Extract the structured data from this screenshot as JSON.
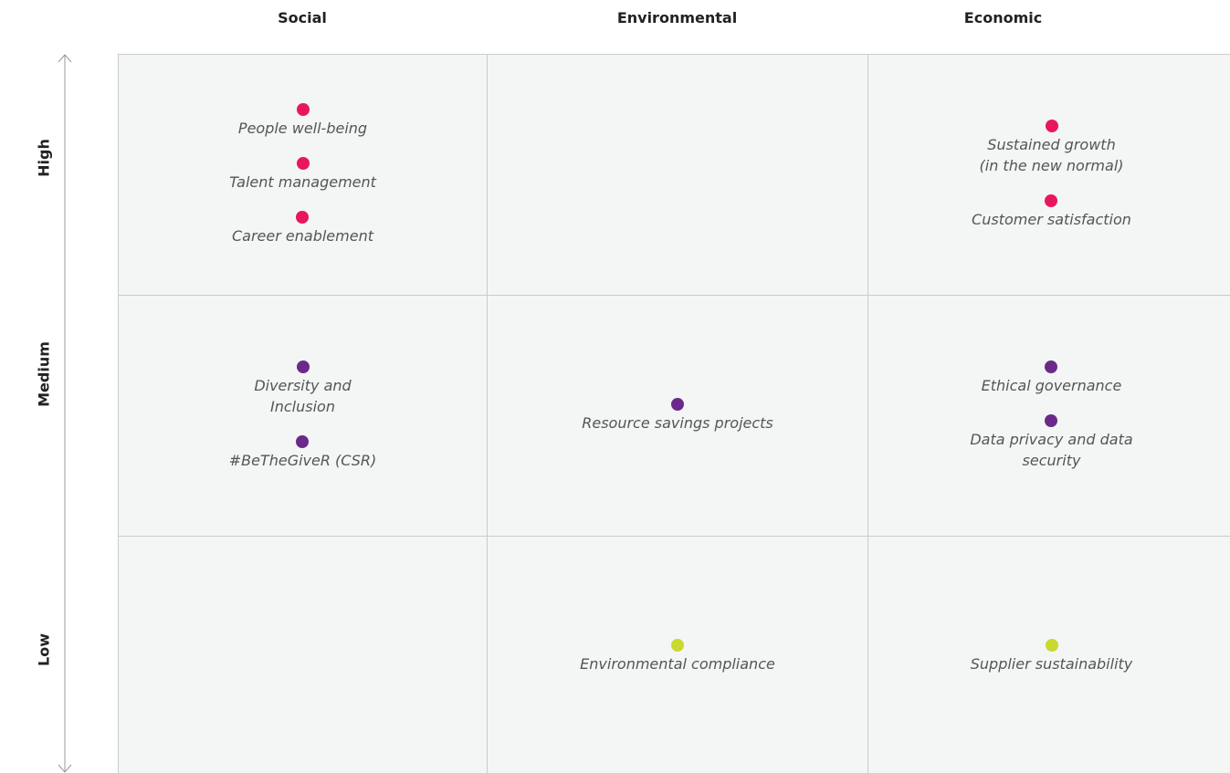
{
  "columns": [
    "Social",
    "Environmental",
    "Economic"
  ],
  "rows": [
    {
      "label": "High",
      "cells": [
        [
          {
            "lines": [
              "People well-being"
            ],
            "color": "#e8175d"
          },
          {
            "lines": [
              "Talent management"
            ],
            "color": "#e8175d"
          },
          {
            "lines": [
              "Career enablement"
            ],
            "color": "#e8175d"
          }
        ],
        [],
        [
          {
            "lines": [
              "Sustained growth",
              "(in the new normal)"
            ],
            "color": "#e8175d"
          },
          {
            "lines": [
              "Customer satisfaction"
            ],
            "color": "#e8175d"
          }
        ]
      ]
    },
    {
      "label": "Medium",
      "cells": [
        [
          {
            "lines": [
              "Diversity and",
              "Inclusion"
            ],
            "color": "#6b2a8a"
          },
          {
            "lines": [
              "#BeTheGiveR (CSR)"
            ],
            "color": "#6b2a8a"
          }
        ],
        [
          {
            "lines": [
              "Resource savings projects"
            ],
            "color": "#6b2a8a"
          }
        ],
        [
          {
            "lines": [
              "Ethical governance"
            ],
            "color": "#6b2a8a"
          },
          {
            "lines": [
              "Data privacy and data",
              "security"
            ],
            "color": "#6b2a8a"
          }
        ]
      ]
    },
    {
      "label": "Low",
      "cells": [
        [],
        [
          {
            "lines": [
              "Environmental compliance"
            ],
            "color": "#c8d92f"
          }
        ],
        [
          {
            "lines": [
              "Supplier sustainability"
            ],
            "color": "#c8d92f"
          }
        ]
      ]
    }
  ]
}
